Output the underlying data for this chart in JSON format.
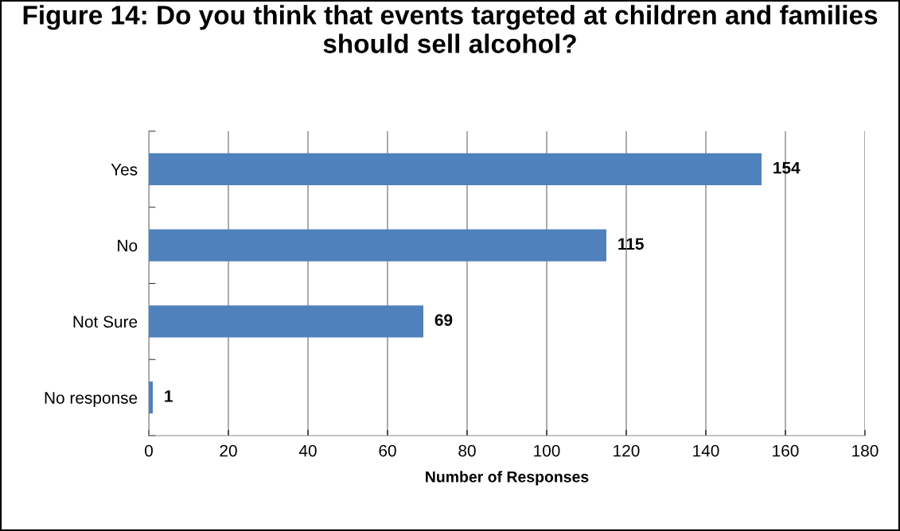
{
  "chart_data": {
    "type": "bar",
    "orientation": "horizontal",
    "title": "Figure 14: Do you think that events targeted at children and families should sell alcohol?",
    "categories": [
      "Yes",
      "No",
      "Not Sure",
      "No response"
    ],
    "values": [
      154,
      115,
      69,
      1
    ],
    "color": "#4f81bd",
    "xlabel": "Number of Responses",
    "xlim": [
      0,
      180
    ],
    "xticks": [
      0,
      20,
      40,
      60,
      80,
      100,
      120,
      140,
      160,
      180
    ],
    "grid": "x",
    "data_labels": true
  }
}
